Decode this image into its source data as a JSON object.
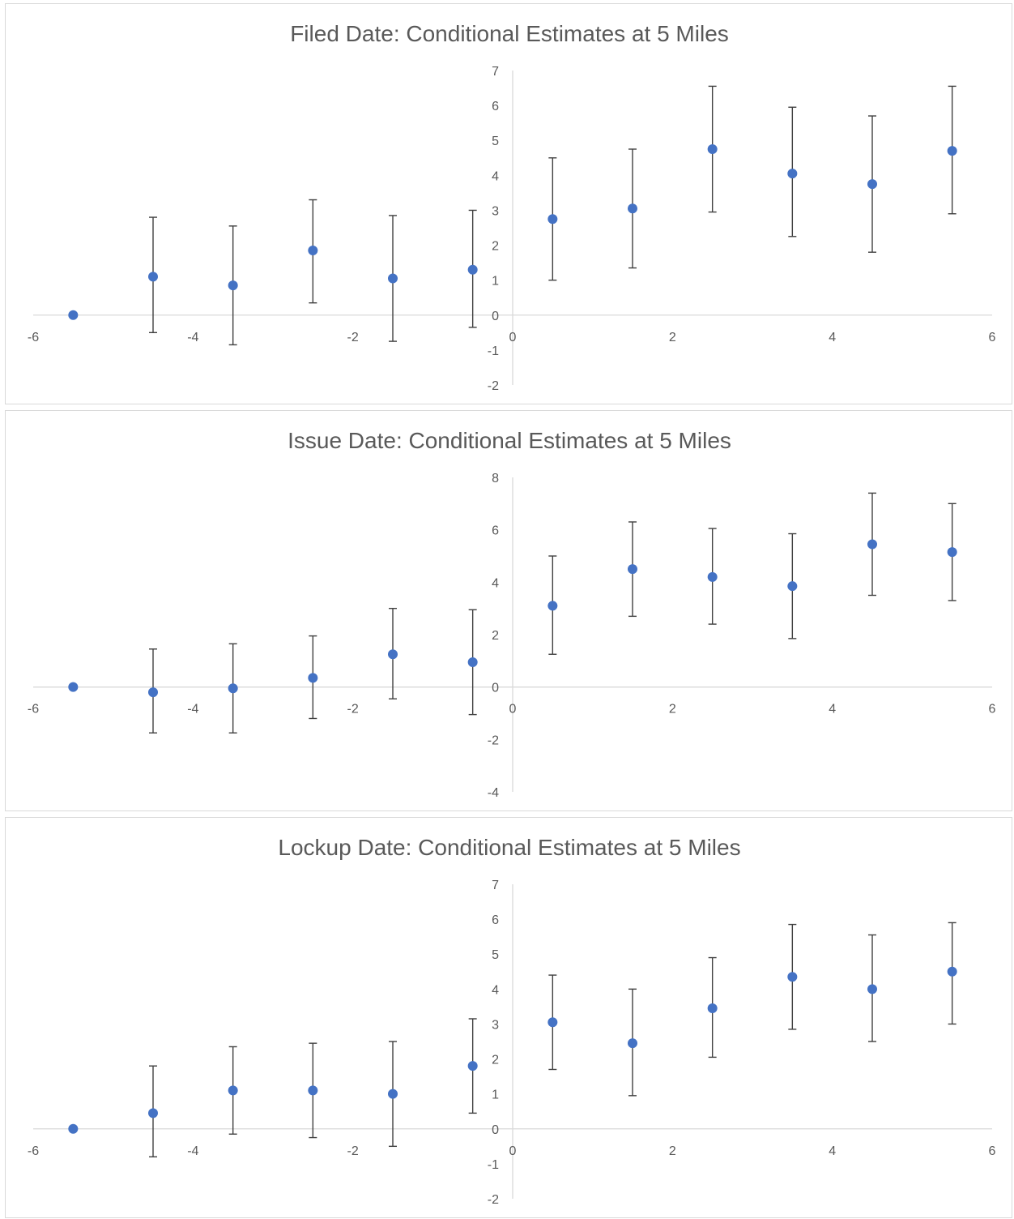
{
  "chart_data": [
    {
      "type": "scatter",
      "title": "Filed Date: Conditional Estimates at 5 Miles",
      "xlabel": "",
      "ylabel": "",
      "xlim": [
        -6,
        6
      ],
      "ylim": [
        -2,
        7
      ],
      "x_ticks": [
        -6,
        -4,
        -2,
        0,
        2,
        4,
        6
      ],
      "y_ticks": [
        -2,
        -1,
        0,
        1,
        2,
        3,
        4,
        5,
        6,
        7
      ],
      "error_bars": true,
      "grid": false,
      "legend": "none",
      "point_color": "#4472c4",
      "points": [
        {
          "x": -5.5,
          "y": 0.0,
          "lower": null,
          "upper": null
        },
        {
          "x": -4.5,
          "y": 1.1,
          "lower": -0.5,
          "upper": 2.8
        },
        {
          "x": -3.5,
          "y": 0.85,
          "lower": -0.85,
          "upper": 2.55
        },
        {
          "x": -2.5,
          "y": 1.85,
          "lower": 0.35,
          "upper": 3.3
        },
        {
          "x": -1.5,
          "y": 1.05,
          "lower": -0.75,
          "upper": 2.85
        },
        {
          "x": -0.5,
          "y": 1.3,
          "lower": -0.35,
          "upper": 3.0
        },
        {
          "x": 0.5,
          "y": 2.75,
          "lower": 1.0,
          "upper": 4.5
        },
        {
          "x": 1.5,
          "y": 3.05,
          "lower": 1.35,
          "upper": 4.75
        },
        {
          "x": 2.5,
          "y": 4.75,
          "lower": 2.95,
          "upper": 6.55
        },
        {
          "x": 3.5,
          "y": 4.05,
          "lower": 2.25,
          "upper": 5.95
        },
        {
          "x": 4.5,
          "y": 3.75,
          "lower": 1.8,
          "upper": 5.7
        },
        {
          "x": 5.5,
          "y": 4.7,
          "lower": 2.9,
          "upper": 6.55
        }
      ]
    },
    {
      "type": "scatter",
      "title": "Issue Date: Conditional Estimates at 5 Miles",
      "xlabel": "",
      "ylabel": "",
      "xlim": [
        -6,
        6
      ],
      "ylim": [
        -4,
        8
      ],
      "x_ticks": [
        -6,
        -4,
        -2,
        0,
        2,
        4,
        6
      ],
      "y_ticks": [
        -4,
        -2,
        0,
        2,
        4,
        6,
        8
      ],
      "error_bars": true,
      "grid": false,
      "legend": "none",
      "point_color": "#4472c4",
      "points": [
        {
          "x": -5.5,
          "y": 0.0,
          "lower": null,
          "upper": null
        },
        {
          "x": -4.5,
          "y": -0.2,
          "lower": -1.75,
          "upper": 1.45
        },
        {
          "x": -3.5,
          "y": -0.05,
          "lower": -1.75,
          "upper": 1.65
        },
        {
          "x": -2.5,
          "y": 0.35,
          "lower": -1.2,
          "upper": 1.95
        },
        {
          "x": -1.5,
          "y": 1.25,
          "lower": -0.45,
          "upper": 3.0
        },
        {
          "x": -0.5,
          "y": 0.95,
          "lower": -1.05,
          "upper": 2.95
        },
        {
          "x": 0.5,
          "y": 3.1,
          "lower": 1.25,
          "upper": 5.0
        },
        {
          "x": 1.5,
          "y": 4.5,
          "lower": 2.7,
          "upper": 6.3
        },
        {
          "x": 2.5,
          "y": 4.2,
          "lower": 2.4,
          "upper": 6.05
        },
        {
          "x": 3.5,
          "y": 3.85,
          "lower": 1.85,
          "upper": 5.85
        },
        {
          "x": 4.5,
          "y": 5.45,
          "lower": 3.5,
          "upper": 7.4
        },
        {
          "x": 5.5,
          "y": 5.15,
          "lower": 3.3,
          "upper": 7.0
        }
      ]
    },
    {
      "type": "scatter",
      "title": "Lockup Date: Conditional Estimates at 5 Miles",
      "xlabel": "",
      "ylabel": "",
      "xlim": [
        -6,
        6
      ],
      "ylim": [
        -2,
        7
      ],
      "x_ticks": [
        -6,
        -4,
        -2,
        0,
        2,
        4,
        6
      ],
      "y_ticks": [
        -2,
        -1,
        0,
        1,
        2,
        3,
        4,
        5,
        6,
        7
      ],
      "error_bars": true,
      "grid": false,
      "legend": "none",
      "point_color": "#4472c4",
      "points": [
        {
          "x": -5.5,
          "y": 0.0,
          "lower": null,
          "upper": null
        },
        {
          "x": -4.5,
          "y": 0.45,
          "lower": -0.8,
          "upper": 1.8
        },
        {
          "x": -3.5,
          "y": 1.1,
          "lower": -0.15,
          "upper": 2.35
        },
        {
          "x": -2.5,
          "y": 1.1,
          "lower": -0.25,
          "upper": 2.45
        },
        {
          "x": -1.5,
          "y": 1.0,
          "lower": -0.5,
          "upper": 2.5
        },
        {
          "x": -0.5,
          "y": 1.8,
          "lower": 0.45,
          "upper": 3.15
        },
        {
          "x": 0.5,
          "y": 3.05,
          "lower": 1.7,
          "upper": 4.4
        },
        {
          "x": 1.5,
          "y": 2.45,
          "lower": 0.95,
          "upper": 4.0
        },
        {
          "x": 2.5,
          "y": 3.45,
          "lower": 2.05,
          "upper": 4.9
        },
        {
          "x": 3.5,
          "y": 4.35,
          "lower": 2.85,
          "upper": 5.85
        },
        {
          "x": 4.5,
          "y": 4.0,
          "lower": 2.5,
          "upper": 5.55
        },
        {
          "x": 5.5,
          "y": 4.5,
          "lower": 3.0,
          "upper": 5.9
        }
      ]
    }
  ]
}
